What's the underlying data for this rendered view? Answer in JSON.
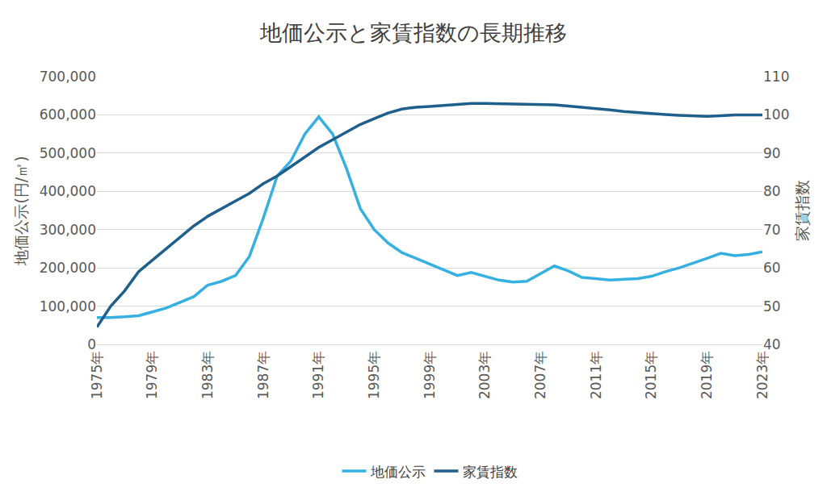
{
  "chart_data": {
    "type": "line",
    "title": "地価公示と家賃指数の長期推移",
    "x_label": "",
    "y_label": "地価公示(円/㎡)",
    "y2_label": "家賃指数",
    "x": [
      1975,
      1976,
      1977,
      1978,
      1979,
      1980,
      1981,
      1982,
      1983,
      1984,
      1985,
      1986,
      1987,
      1988,
      1989,
      1990,
      1991,
      1992,
      1993,
      1994,
      1995,
      1996,
      1997,
      1998,
      1999,
      2000,
      2001,
      2002,
      2003,
      2004,
      2005,
      2006,
      2007,
      2008,
      2009,
      2010,
      2011,
      2012,
      2013,
      2014,
      2015,
      2016,
      2017,
      2018,
      2019,
      2020,
      2021,
      2022,
      2023
    ],
    "series": [
      {
        "name": "地価公示",
        "color": "#36b0e0",
        "axis": "y",
        "values": [
          70000,
          70000,
          72000,
          75000,
          85000,
          95000,
          110000,
          125000,
          155000,
          165000,
          180000,
          230000,
          330000,
          440000,
          480000,
          550000,
          595000,
          550000,
          460000,
          355000,
          300000,
          265000,
          240000,
          225000,
          210000,
          195000,
          180000,
          188000,
          178000,
          168000,
          163000,
          165000,
          185000,
          205000,
          192000,
          175000,
          172000,
          168000,
          170000,
          172000,
          178000,
          190000,
          200000,
          212000,
          225000,
          238000,
          232000,
          235000,
          242000
        ]
      },
      {
        "name": "家賃指数",
        "color": "#1f5f8b",
        "axis": "y2",
        "values": [
          44.5,
          50,
          54,
          59,
          62,
          65,
          68,
          71,
          73.5,
          75.5,
          77.5,
          79.5,
          82,
          84,
          86.5,
          89,
          91.5,
          93.5,
          95.5,
          97.5,
          99,
          100.5,
          101.5,
          102,
          102.2,
          102.5,
          102.8,
          103,
          103,
          102.9,
          102.8,
          102.8,
          102.6,
          102.6,
          102.3,
          102,
          101.7,
          101.3,
          100.9,
          100.6,
          100.3,
          100.1,
          99.9,
          99.7,
          99.6,
          99.8,
          100,
          100,
          100
        ]
      }
    ],
    "xlim": [
      1975,
      2023
    ],
    "xticks": [
      {
        "value": 1975,
        "label": "1975年"
      },
      {
        "value": 1979,
        "label": "1979年"
      },
      {
        "value": 1983,
        "label": "1983年"
      },
      {
        "value": 1987,
        "label": "1987年"
      },
      {
        "value": 1991,
        "label": "1991年"
      },
      {
        "value": 1995,
        "label": "1995年"
      },
      {
        "value": 1999,
        "label": "1999年"
      },
      {
        "value": 2003,
        "label": "2003年"
      },
      {
        "value": 2007,
        "label": "2007年"
      },
      {
        "value": 2011,
        "label": "2011年"
      },
      {
        "value": 2015,
        "label": "2015年"
      },
      {
        "value": 2019,
        "label": "2019年"
      },
      {
        "value": 2023,
        "label": "2023年"
      }
    ],
    "ylim": [
      0,
      700000
    ],
    "yticks": [
      0,
      {
        "value": 100000,
        "label": "100,000"
      },
      {
        "value": 200000,
        "label": "200,000"
      },
      {
        "value": 300000,
        "label": "300,000"
      },
      {
        "value": 400000,
        "label": "400,000"
      },
      {
        "value": 500000,
        "label": "500,000"
      },
      {
        "value": 600000,
        "label": "600,000"
      },
      {
        "value": 700000,
        "label": "700,000"
      }
    ],
    "y2lim": [
      40,
      110
    ],
    "y2ticks": [
      40,
      50,
      60,
      70,
      80,
      90,
      100,
      110
    ],
    "grid": true,
    "legend": "bottom"
  }
}
